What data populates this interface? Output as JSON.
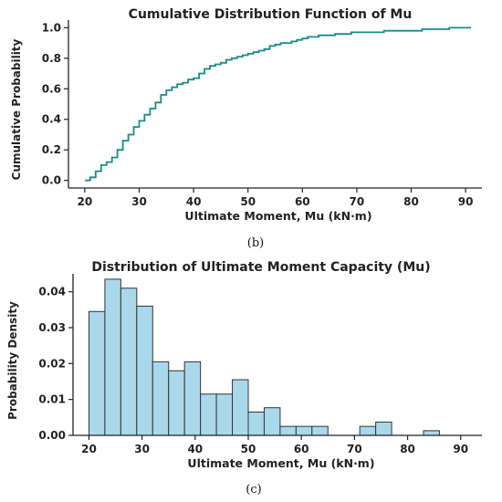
{
  "chart_data": [
    {
      "type": "line",
      "title": "Cumulative Distribution Function of Mu",
      "xlabel": "Ultimate Moment, Mu (kN·m)",
      "ylabel": "Cumulative Probability",
      "xlim": [
        17,
        93
      ],
      "ylim": [
        -0.05,
        1.05
      ],
      "xticks": [
        20,
        30,
        40,
        50,
        60,
        70,
        80,
        90
      ],
      "yticks": [
        0.0,
        0.2,
        0.4,
        0.6,
        0.8,
        1.0
      ],
      "tick_labels_x": [
        "20",
        "30",
        "40",
        "50",
        "60",
        "70",
        "80",
        "90"
      ],
      "tick_labels_y": [
        "0.0",
        "0.2",
        "0.4",
        "0.6",
        "0.8",
        "1.0"
      ],
      "color": "#1a8a8a",
      "grid": false,
      "caption": "(b)",
      "x": [
        20,
        21,
        22,
        23,
        24,
        25,
        26,
        27,
        28,
        29,
        30,
        31,
        32,
        33,
        34,
        35,
        36,
        37,
        38,
        39,
        40,
        41,
        42,
        43,
        44,
        45,
        46,
        47,
        48,
        49,
        50,
        51,
        52,
        53,
        54,
        55,
        56,
        57,
        58,
        59,
        60,
        61,
        62,
        63,
        64,
        65,
        66,
        67,
        68,
        69,
        70,
        72,
        75,
        78,
        80,
        82,
        84,
        87,
        91
      ],
      "y": [
        0.0,
        0.02,
        0.06,
        0.1,
        0.12,
        0.15,
        0.2,
        0.26,
        0.3,
        0.35,
        0.39,
        0.43,
        0.47,
        0.51,
        0.56,
        0.59,
        0.61,
        0.63,
        0.64,
        0.66,
        0.67,
        0.7,
        0.73,
        0.75,
        0.76,
        0.77,
        0.79,
        0.8,
        0.81,
        0.82,
        0.83,
        0.84,
        0.85,
        0.86,
        0.88,
        0.89,
        0.9,
        0.9,
        0.91,
        0.92,
        0.93,
        0.94,
        0.94,
        0.95,
        0.95,
        0.95,
        0.96,
        0.96,
        0.96,
        0.97,
        0.97,
        0.97,
        0.98,
        0.98,
        0.98,
        0.99,
        0.99,
        1.0,
        1.0
      ]
    },
    {
      "type": "bar",
      "title": "Distribution of Ultimate Moment Capacity (Mu)",
      "xlabel": "Ultimate Moment, Mu (kN·m)",
      "ylabel": "Probability Density",
      "xlim": [
        17,
        94
      ],
      "ylim": [
        0,
        0.045
      ],
      "xticks": [
        20,
        30,
        40,
        50,
        60,
        70,
        80,
        90
      ],
      "yticks": [
        0.0,
        0.01,
        0.02,
        0.03,
        0.04
      ],
      "tick_labels_x": [
        "20",
        "30",
        "40",
        "50",
        "60",
        "70",
        "80",
        "90"
      ],
      "tick_labels_y": [
        "0.00",
        "0.01",
        "0.02",
        "0.03",
        "0.04"
      ],
      "bar_color": "#a9d8eb",
      "edge_color": "#333333",
      "grid": false,
      "caption": "(c)",
      "bin_edges": [
        20,
        23,
        26,
        29,
        32,
        35,
        38,
        41,
        44,
        47,
        50,
        53,
        56,
        59,
        62,
        65,
        68,
        71,
        74,
        77,
        80,
        83,
        86,
        89,
        92
      ],
      "values": [
        0.0345,
        0.0435,
        0.041,
        0.036,
        0.0205,
        0.018,
        0.0205,
        0.0115,
        0.0115,
        0.0155,
        0.0065,
        0.0077,
        0.0025,
        0.0025,
        0.0025,
        0.0,
        0.0,
        0.0025,
        0.0037,
        0.0,
        0.0,
        0.0013,
        0.0,
        0.0
      ]
    }
  ]
}
